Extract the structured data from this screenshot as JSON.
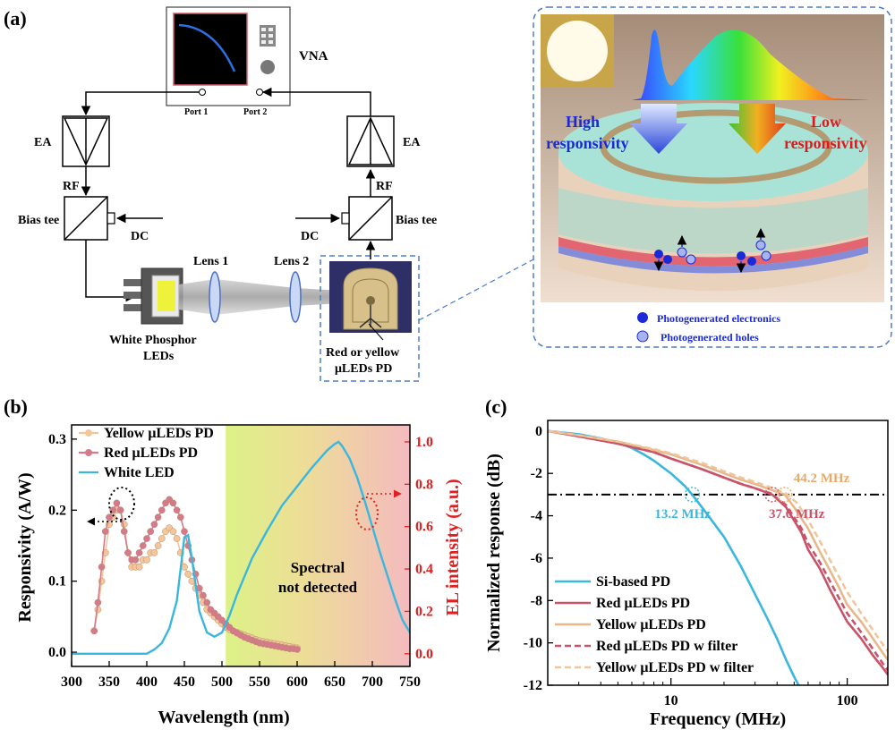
{
  "panel_a": {
    "label": "(a)",
    "vna": "VNA",
    "port1": "Port 1",
    "port2": "Port 2",
    "ea_left": "EA",
    "ea_right": "EA",
    "rf_left": "RF",
    "rf_right": "RF",
    "bias_left": "Bias tee",
    "bias_right": "Bias tee",
    "dc_left": "DC",
    "dc_right": "DC",
    "lens1": "Lens 1",
    "lens2": "Lens 2",
    "white_led_line1": "White Phosphor",
    "white_led_line2": "LEDs",
    "pd_line1": "Red or yellow",
    "pd_line2": "μLEDs PD",
    "high_line1": "High",
    "high_line2": "responsivity",
    "low_line1": "Low",
    "low_line2": "responsivity",
    "legend_electrons": "Photogenerated electronics",
    "legend_holes": "Photogenerated holes"
  },
  "chart_data": [
    {
      "panel": "(b)",
      "type": "line",
      "xlabel": "Wavelength (nm)",
      "ylabel_left": "Responsivity (A/W)",
      "ylabel_right": "EL intensity (a.u.)",
      "xlim": [
        300,
        750
      ],
      "ylim_left": [
        -0.02,
        0.32
      ],
      "ylim_right": [
        -0.06,
        1.08
      ],
      "xticks": [
        "300",
        "350",
        "400",
        "450",
        "500",
        "550",
        "600",
        "650",
        "700",
        "750"
      ],
      "yticks_left": [
        "0.0",
        "0.1",
        "0.2",
        "0.3"
      ],
      "yticks_right": [
        "0.0",
        "0.2",
        "0.4",
        "0.6",
        "0.8",
        "1.0"
      ],
      "annotation": [
        "Spectral",
        "not detected"
      ],
      "legend_position": "top-left",
      "series": [
        {
          "name": "Yellow μLEDs PD",
          "axis": "left",
          "color": "#f3c79a",
          "marker": "circle",
          "x": [
            330,
            335,
            340,
            345,
            350,
            355,
            360,
            365,
            370,
            375,
            380,
            385,
            390,
            395,
            400,
            405,
            410,
            415,
            420,
            425,
            430,
            435,
            440,
            445,
            450,
            455,
            460,
            465,
            470,
            475,
            480,
            485,
            490,
            495,
            500,
            505,
            510,
            515,
            520,
            525,
            530,
            535,
            540,
            545,
            550,
            555,
            560,
            565,
            570,
            575,
            580,
            585,
            590,
            595,
            600
          ],
          "y": [
            0.03,
            0.06,
            0.1,
            0.14,
            0.18,
            0.19,
            0.2,
            0.2,
            0.18,
            0.14,
            0.12,
            0.12,
            0.12,
            0.13,
            0.13,
            0.14,
            0.14,
            0.15,
            0.16,
            0.17,
            0.175,
            0.17,
            0.16,
            0.14,
            0.12,
            0.11,
            0.1,
            0.09,
            0.08,
            0.07,
            0.06,
            0.055,
            0.05,
            0.045,
            0.04,
            0.035,
            0.032,
            0.03,
            0.028,
            0.026,
            0.024,
            0.022,
            0.02,
            0.018,
            0.016,
            0.015,
            0.014,
            0.013,
            0.012,
            0.011,
            0.01,
            0.009,
            0.008,
            0.007,
            0.006
          ]
        },
        {
          "name": "Red μLEDs PD",
          "axis": "left",
          "color": "#d47a8a",
          "marker": "circle",
          "x": [
            330,
            335,
            340,
            345,
            350,
            355,
            360,
            365,
            370,
            375,
            380,
            385,
            390,
            395,
            400,
            405,
            410,
            415,
            420,
            425,
            430,
            435,
            440,
            445,
            450,
            455,
            460,
            465,
            470,
            475,
            480,
            485,
            490,
            495,
            500,
            505,
            510,
            515,
            520,
            525,
            530,
            535,
            540,
            545,
            550,
            555,
            560,
            565,
            570,
            575,
            580,
            585,
            590,
            595,
            600
          ],
          "y": [
            0.03,
            0.07,
            0.12,
            0.17,
            0.19,
            0.2,
            0.21,
            0.2,
            0.17,
            0.14,
            0.13,
            0.13,
            0.14,
            0.15,
            0.16,
            0.17,
            0.18,
            0.19,
            0.2,
            0.21,
            0.215,
            0.21,
            0.2,
            0.19,
            0.17,
            0.15,
            0.13,
            0.11,
            0.09,
            0.08,
            0.07,
            0.06,
            0.055,
            0.05,
            0.045,
            0.04,
            0.035,
            0.03,
            0.027,
            0.024,
            0.021,
            0.019,
            0.017,
            0.015,
            0.013,
            0.012,
            0.011,
            0.01,
            0.009,
            0.008,
            0.007,
            0.006,
            0.005,
            0.005,
            0.004
          ]
        },
        {
          "name": "White LED",
          "axis": "right",
          "color": "#3ab7de",
          "marker": "none",
          "x": [
            300,
            400,
            410,
            420,
            430,
            440,
            445,
            450,
            455,
            460,
            470,
            480,
            490,
            500,
            510,
            520,
            540,
            560,
            580,
            600,
            620,
            640,
            650,
            655,
            660,
            670,
            680,
            690,
            700,
            710,
            720,
            730,
            740,
            750
          ],
          "y": [
            0.0,
            0.0,
            0.02,
            0.05,
            0.12,
            0.25,
            0.4,
            0.55,
            0.56,
            0.45,
            0.2,
            0.1,
            0.08,
            0.1,
            0.18,
            0.28,
            0.45,
            0.58,
            0.7,
            0.79,
            0.88,
            0.96,
            0.99,
            1.0,
            0.98,
            0.92,
            0.83,
            0.72,
            0.6,
            0.48,
            0.37,
            0.26,
            0.16,
            0.1
          ]
        }
      ]
    },
    {
      "panel": "(c)",
      "type": "line",
      "xlabel": "Frequency (MHz)",
      "ylabel": "Normalized response (dB)",
      "xscale": "log",
      "xlim": [
        2,
        170
      ],
      "ylim": [
        -12,
        0.5
      ],
      "xticks": [
        "10",
        "100"
      ],
      "yticks": [
        "0",
        "-2",
        "-4",
        "-6",
        "-8",
        "-10",
        "-12"
      ],
      "reference_line_y": -3,
      "legend_position": "bottom-left",
      "annotations": [
        {
          "text": "13.2 MHz",
          "x": 13.2,
          "color": "#3ab7de"
        },
        {
          "text": "37.6 MHz",
          "x": 37.6,
          "color": "#c9546a"
        },
        {
          "text": "44.2 MHz",
          "x": 44.2,
          "color": "#e8a96b"
        }
      ],
      "series": [
        {
          "name": "Si-based PD",
          "color": "#3ab7de",
          "dash": "solid",
          "x": [
            2,
            3,
            4,
            5,
            6,
            7,
            8,
            10,
            12,
            13.2,
            15,
            20,
            25,
            30,
            35,
            40,
            45,
            50,
            53
          ],
          "y": [
            0,
            -0.15,
            -0.35,
            -0.55,
            -0.8,
            -1.1,
            -1.4,
            -2.0,
            -2.6,
            -3.0,
            -3.6,
            -5.0,
            -6.4,
            -7.7,
            -8.8,
            -9.8,
            -10.8,
            -11.6,
            -12
          ]
        },
        {
          "name": "Red μLEDs PD",
          "color": "#c9546a",
          "dash": "solid",
          "x": [
            2,
            3,
            5,
            8,
            10,
            15,
            20,
            25,
            30,
            37.6,
            45,
            55,
            60,
            70,
            80,
            90,
            100,
            120,
            140,
            160,
            170
          ],
          "y": [
            0,
            -0.25,
            -0.6,
            -1.0,
            -1.3,
            -1.8,
            -2.2,
            -2.5,
            -2.7,
            -3.0,
            -3.6,
            -4.8,
            -5.6,
            -6.5,
            -7.5,
            -8.3,
            -9.0,
            -9.8,
            -10.6,
            -11.2,
            -11.5
          ]
        },
        {
          "name": "Yellow μLEDs PD",
          "color": "#e8b88a",
          "dash": "solid",
          "x": [
            2,
            3,
            5,
            8,
            10,
            15,
            20,
            25,
            30,
            35,
            44.2,
            50,
            60,
            70,
            80,
            90,
            100,
            120,
            140,
            160,
            170
          ],
          "y": [
            0,
            -0.2,
            -0.5,
            -0.9,
            -1.1,
            -1.6,
            -2.0,
            -2.3,
            -2.5,
            -2.7,
            -3.0,
            -3.6,
            -4.6,
            -5.7,
            -6.6,
            -7.4,
            -8.2,
            -9.0,
            -9.8,
            -10.5,
            -10.8
          ]
        },
        {
          "name": "Red μLEDs PD w filter",
          "color": "#c9546a",
          "dash": "dashed",
          "x": [
            2,
            3,
            5,
            8,
            10,
            15,
            20,
            25,
            30,
            37,
            45,
            55,
            60,
            70,
            80,
            90,
            100,
            120,
            140,
            160,
            170
          ],
          "y": [
            0,
            -0.25,
            -0.6,
            -1.0,
            -1.3,
            -1.8,
            -2.2,
            -2.5,
            -2.7,
            -2.95,
            -3.5,
            -4.6,
            -5.3,
            -6.2,
            -7.1,
            -7.9,
            -8.6,
            -9.5,
            -10.3,
            -11.0,
            -11.3
          ]
        },
        {
          "name": "Yellow μLEDs PD w filter",
          "color": "#f0c79d",
          "dash": "dashed",
          "x": [
            2,
            3,
            5,
            8,
            10,
            15,
            20,
            25,
            30,
            35,
            45,
            52,
            60,
            70,
            80,
            90,
            100,
            120,
            140,
            160,
            170
          ],
          "y": [
            0,
            -0.2,
            -0.5,
            -0.85,
            -1.05,
            -1.5,
            -1.9,
            -2.2,
            -2.4,
            -2.6,
            -2.95,
            -3.4,
            -4.2,
            -5.2,
            -6.1,
            -6.9,
            -7.6,
            -8.6,
            -9.4,
            -10.1,
            -10.4
          ]
        }
      ]
    }
  ]
}
